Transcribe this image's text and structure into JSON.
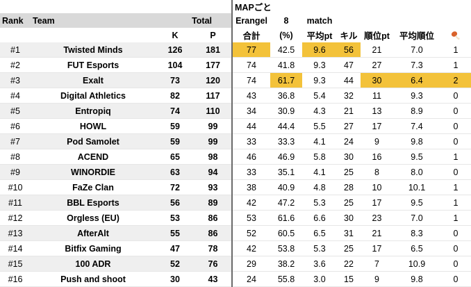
{
  "header": {
    "map_label": "MAPごと",
    "rank_label": "Rank",
    "team_label": "Team",
    "total_label": "Total",
    "erangel_label": "Erangel",
    "eight_label": "8",
    "match_label": "match",
    "k_label": "K",
    "p_label": "P",
    "gokei_label": "合計",
    "pct_label": "(%)",
    "avg_pt_label": "平均pt",
    "kill_label": "キル",
    "rank_pt_label": "順位pt",
    "avg_rank_label": "平均順位",
    "chicken_icon": "chicken-leg-icon"
  },
  "colors": {
    "highlight": "#f3c23a",
    "header_bg": "#d9d9d9",
    "alt_row": "#efefef"
  },
  "rows": [
    {
      "rank": "#1",
      "team": "Twisted Minds",
      "k": "126",
      "p": "181",
      "gokei": "77",
      "pct": "42.5",
      "avgpt": "9.6",
      "kill": "56",
      "rankpt": "21",
      "avgrank": "7.0",
      "wins": "1"
    },
    {
      "rank": "#2",
      "team": "FUT Esports",
      "k": "104",
      "p": "177",
      "gokei": "74",
      "pct": "41.8",
      "avgpt": "9.3",
      "kill": "47",
      "rankpt": "27",
      "avgrank": "7.3",
      "wins": "1"
    },
    {
      "rank": "#3",
      "team": "Exalt",
      "k": "73",
      "p": "120",
      "gokei": "74",
      "pct": "61.7",
      "avgpt": "9.3",
      "kill": "44",
      "rankpt": "30",
      "avgrank": "6.4",
      "wins": "2"
    },
    {
      "rank": "#4",
      "team": "Digital Athletics",
      "k": "82",
      "p": "117",
      "gokei": "43",
      "pct": "36.8",
      "avgpt": "5.4",
      "kill": "32",
      "rankpt": "11",
      "avgrank": "9.3",
      "wins": "0"
    },
    {
      "rank": "#5",
      "team": "Entropiq",
      "k": "74",
      "p": "110",
      "gokei": "34",
      "pct": "30.9",
      "avgpt": "4.3",
      "kill": "21",
      "rankpt": "13",
      "avgrank": "8.9",
      "wins": "0"
    },
    {
      "rank": "#6",
      "team": "HOWL",
      "k": "59",
      "p": "99",
      "gokei": "44",
      "pct": "44.4",
      "avgpt": "5.5",
      "kill": "27",
      "rankpt": "17",
      "avgrank": "7.4",
      "wins": "0"
    },
    {
      "rank": "#7",
      "team": "Pod Samolet",
      "k": "59",
      "p": "99",
      "gokei": "33",
      "pct": "33.3",
      "avgpt": "4.1",
      "kill": "24",
      "rankpt": "9",
      "avgrank": "9.8",
      "wins": "0"
    },
    {
      "rank": "#8",
      "team": "ACEND",
      "k": "65",
      "p": "98",
      "gokei": "46",
      "pct": "46.9",
      "avgpt": "5.8",
      "kill": "30",
      "rankpt": "16",
      "avgrank": "9.5",
      "wins": "1"
    },
    {
      "rank": "#9",
      "team": "WINORDIE",
      "k": "63",
      "p": "94",
      "gokei": "33",
      "pct": "35.1",
      "avgpt": "4.1",
      "kill": "25",
      "rankpt": "8",
      "avgrank": "8.0",
      "wins": "0"
    },
    {
      "rank": "#10",
      "team": "FaZe Clan",
      "k": "72",
      "p": "93",
      "gokei": "38",
      "pct": "40.9",
      "avgpt": "4.8",
      "kill": "28",
      "rankpt": "10",
      "avgrank": "10.1",
      "wins": "1"
    },
    {
      "rank": "#11",
      "team": "BBL Esports",
      "k": "56",
      "p": "89",
      "gokei": "42",
      "pct": "47.2",
      "avgpt": "5.3",
      "kill": "25",
      "rankpt": "17",
      "avgrank": "9.5",
      "wins": "1"
    },
    {
      "rank": "#12",
      "team": "Orgless (EU)",
      "k": "53",
      "p": "86",
      "gokei": "53",
      "pct": "61.6",
      "avgpt": "6.6",
      "kill": "30",
      "rankpt": "23",
      "avgrank": "7.0",
      "wins": "1"
    },
    {
      "rank": "#13",
      "team": "AfterAlt",
      "k": "55",
      "p": "86",
      "gokei": "52",
      "pct": "60.5",
      "avgpt": "6.5",
      "kill": "31",
      "rankpt": "21",
      "avgrank": "8.3",
      "wins": "0"
    },
    {
      "rank": "#14",
      "team": "Bitfix Gaming",
      "k": "47",
      "p": "78",
      "gokei": "42",
      "pct": "53.8",
      "avgpt": "5.3",
      "kill": "25",
      "rankpt": "17",
      "avgrank": "6.5",
      "wins": "0"
    },
    {
      "rank": "#15",
      "team": "100 ADR",
      "k": "52",
      "p": "76",
      "gokei": "29",
      "pct": "38.2",
      "avgpt": "3.6",
      "kill": "22",
      "rankpt": "7",
      "avgrank": "10.9",
      "wins": "0"
    },
    {
      "rank": "#16",
      "team": "Push and shoot",
      "k": "30",
      "p": "43",
      "gokei": "24",
      "pct": "55.8",
      "avgpt": "3.0",
      "kill": "15",
      "rankpt": "9",
      "avgrank": "9.8",
      "wins": "0"
    }
  ]
}
